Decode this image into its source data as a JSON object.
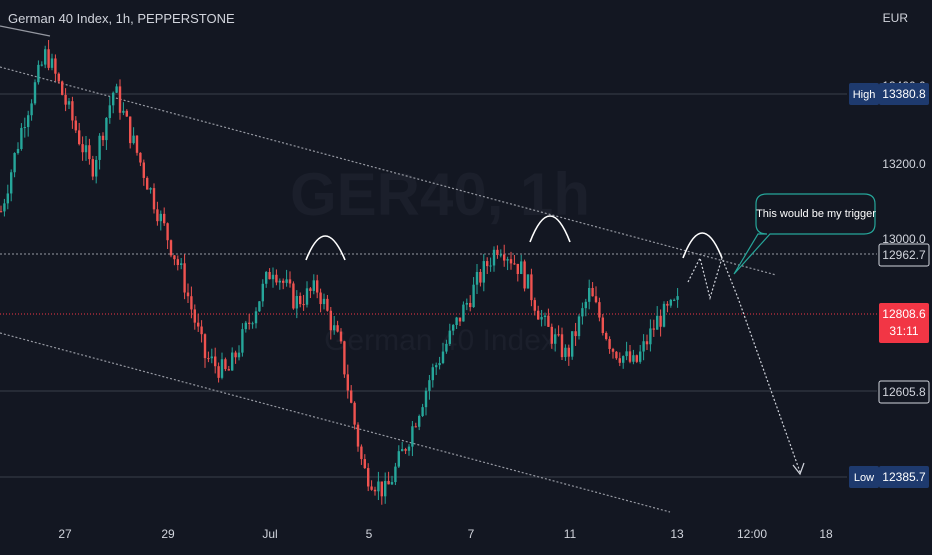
{
  "header": {
    "symbol_title": "German 40 Index, 1h, PEPPERSTONE",
    "currency": "EUR"
  },
  "watermark": {
    "ticker": "GER40, 1h",
    "name": "German 40 Index"
  },
  "colors": {
    "background": "#131722",
    "up": "#26a69a",
    "down": "#ef5350",
    "axis_text": "#d1d4dc",
    "label_bg": "#2a2e39",
    "high_low_bg": "#1e3a6e",
    "current_price_bg": "#f23645",
    "annotation_border": "#26a69a"
  },
  "chart_data": {
    "type": "candlestick",
    "title": "German 40 Index, 1h, PEPPERSTONE",
    "currency": "EUR",
    "y_range": [
      12340,
      13485
    ],
    "price_ticks": [
      "13400.0",
      "13200.0",
      "13000.0"
    ],
    "x_tick_labels": [
      "27",
      "29",
      "Jul",
      "5",
      "7",
      "11",
      "13",
      "12:00",
      "18"
    ],
    "price_labels": {
      "high": {
        "label": "High",
        "value": "13380.8"
      },
      "level": {
        "value": "12962.7"
      },
      "current": {
        "value": "12808.6",
        "countdown": "31:11"
      },
      "support": {
        "value": "12605.8"
      },
      "low": {
        "label": "Low",
        "value": "12385.7"
      }
    },
    "close_path": [
      13020,
      13220,
      13370,
      13240,
      13110,
      13290,
      13150,
      13010,
      12880,
      12700,
      12660,
      12780,
      12900,
      12820,
      12850,
      12720,
      12450,
      12400,
      12520,
      12660,
      12760,
      12860,
      12950,
      12890,
      12770,
      12700,
      12840,
      12720,
      12680,
      12780,
      12820
    ]
  },
  "annotation": {
    "text": "This would be my trigger"
  }
}
